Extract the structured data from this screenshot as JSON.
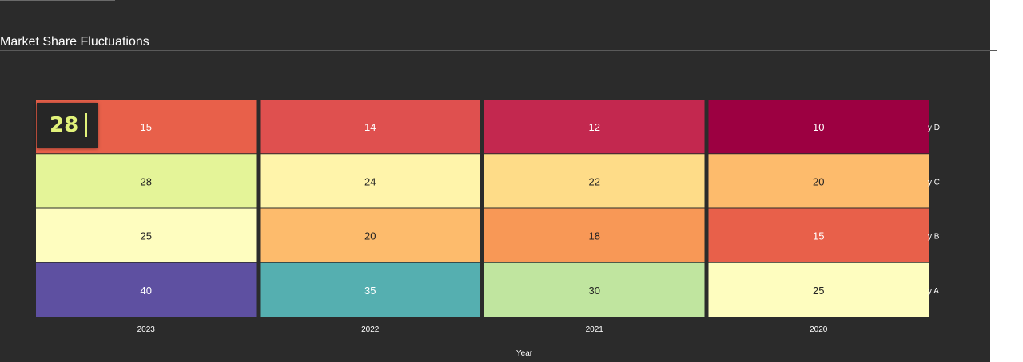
{
  "title": "Market Share Fluctuations",
  "tooltip": {
    "value": "28"
  },
  "chart_data": {
    "type": "heatmap",
    "title": "Market Share Fluctuations",
    "xlabel": "Year",
    "ylabel": "",
    "columns": [
      "2023",
      "2022",
      "2021",
      "2020"
    ],
    "rows": [
      "Company D",
      "Company C",
      "Company B",
      "Company A"
    ],
    "row_labels_visible": [
      "y D",
      "y C",
      "y B",
      "y A"
    ],
    "values": [
      [
        15,
        14,
        12,
        10
      ],
      [
        28,
        24,
        22,
        20
      ],
      [
        25,
        20,
        18,
        15
      ],
      [
        40,
        35,
        30,
        25
      ]
    ],
    "colors": [
      [
        "#e8604a",
        "#df504f",
        "#c3284f",
        "#9c0041"
      ],
      [
        "#e4f498",
        "#fff4aa",
        "#fedc88",
        "#fdbb6c"
      ],
      [
        "#fefdbf",
        "#fdbb6c",
        "#f89856",
        "#e8604a"
      ],
      [
        "#5e50a1",
        "#55afb0",
        "#c0e59f",
        "#fefdbf"
      ]
    ],
    "grid": false,
    "legend": "none"
  }
}
